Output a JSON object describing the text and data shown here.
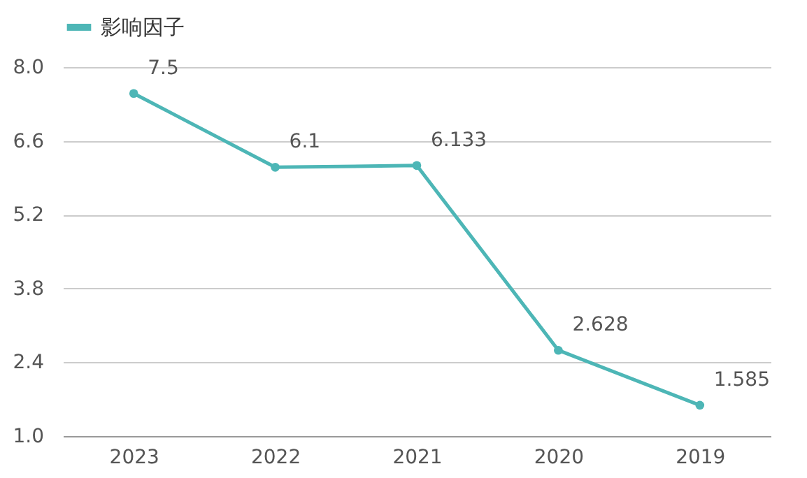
{
  "chart_data": {
    "type": "line",
    "categories": [
      "2023",
      "2022",
      "2021",
      "2020",
      "2019"
    ],
    "series": [
      {
        "name": "影响因子",
        "color": "#4db6b6",
        "values": [
          7.5,
          6.1,
          6.133,
          2.628,
          1.585
        ]
      }
    ],
    "ylim": [
      1.0,
      8.0
    ],
    "yticks": [
      {
        "value": 1.0,
        "label": "1.0"
      },
      {
        "value": 2.4,
        "label": "2.4"
      },
      {
        "value": 3.8,
        "label": "3.8"
      },
      {
        "value": 5.2,
        "label": "5.2"
      },
      {
        "value": 6.6,
        "label": "6.6"
      },
      {
        "value": 8.0,
        "label": "8.0"
      }
    ],
    "grid": "y",
    "legend": "top left",
    "marker": "circle",
    "data_labels": true
  }
}
